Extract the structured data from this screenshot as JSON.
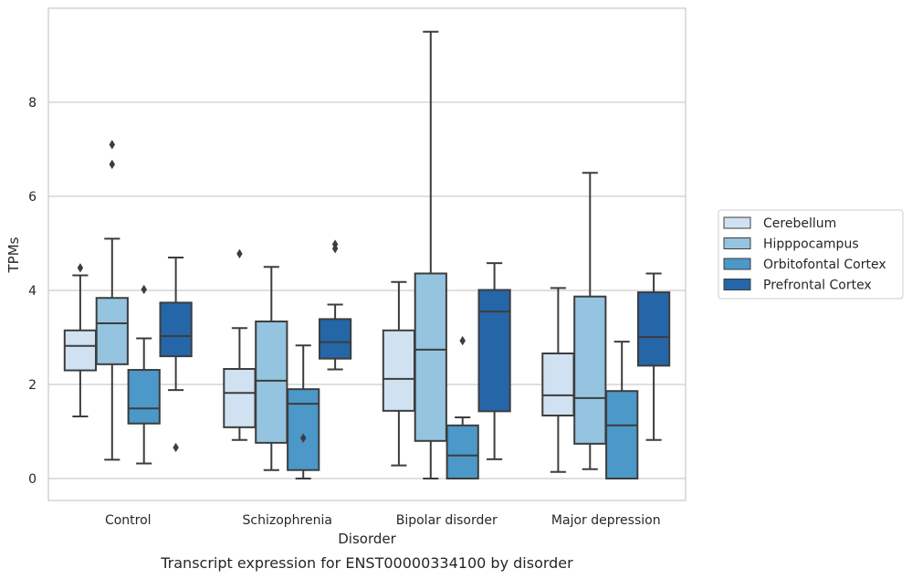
{
  "chart_data": {
    "type": "box",
    "title": "",
    "caption": "Transcript expression for ENST00000334100 by disorder",
    "xlabel": "Disorder",
    "ylabel": "TPMs",
    "ylim": [
      -0.45,
      10.0
    ],
    "yticks": [
      0,
      2,
      4,
      6,
      8
    ],
    "grid": "horizontal",
    "legend_position": "right",
    "categories": [
      "Control",
      "Schizophrenia",
      "Bipolar disorder",
      "Major depression"
    ],
    "series": [
      {
        "name": "Cerebellum",
        "color": "#d0e1f2",
        "boxes": [
          {
            "whislo": 1.32,
            "q1": 2.3,
            "med": 2.82,
            "q3": 3.15,
            "whishi": 4.32,
            "fliers": [
              4.48
            ]
          },
          {
            "whislo": 0.82,
            "q1": 1.09,
            "med": 1.82,
            "q3": 2.33,
            "whishi": 3.2,
            "fliers": [
              4.78
            ]
          },
          {
            "whislo": 0.28,
            "q1": 1.44,
            "med": 2.12,
            "q3": 3.15,
            "whishi": 4.18,
            "fliers": []
          },
          {
            "whislo": 0.14,
            "q1": 1.34,
            "med": 1.77,
            "q3": 2.66,
            "whishi": 4.05,
            "fliers": []
          }
        ]
      },
      {
        "name": "Hipppocampus",
        "color": "#94c4df",
        "boxes": [
          {
            "whislo": 0.4,
            "q1": 2.43,
            "med": 3.3,
            "q3": 3.84,
            "whishi": 5.1,
            "fliers": [
              7.1,
              6.68
            ]
          },
          {
            "whislo": 0.18,
            "q1": 0.76,
            "med": 2.08,
            "q3": 3.34,
            "whishi": 4.5,
            "fliers": []
          },
          {
            "whislo": 0.0,
            "q1": 0.8,
            "med": 2.74,
            "q3": 4.36,
            "whishi": 9.5,
            "fliers": []
          },
          {
            "whislo": 0.2,
            "q1": 0.74,
            "med": 1.71,
            "q3": 3.87,
            "whishi": 6.5,
            "fliers": []
          }
        ]
      },
      {
        "name": "Orbitofontal Cortex",
        "color": "#4b98c9",
        "boxes": [
          {
            "whislo": 0.32,
            "q1": 1.17,
            "med": 1.49,
            "q3": 2.31,
            "whishi": 2.98,
            "fliers": [
              4.02
            ]
          },
          {
            "whislo": 0.0,
            "q1": 0.18,
            "med": 1.59,
            "q3": 1.9,
            "whishi": 2.83,
            "fliers": [
              0.86
            ]
          },
          {
            "whislo": 0.0,
            "q1": 0.0,
            "med": 0.49,
            "q3": 1.13,
            "whishi": 1.3,
            "fliers": [
              2.93
            ]
          },
          {
            "whislo": 0.0,
            "q1": 0.0,
            "med": 1.13,
            "q3": 1.86,
            "whishi": 2.91,
            "fliers": []
          }
        ]
      },
      {
        "name": "Prefrontal Cortex",
        "color": "#2466a8",
        "boxes": [
          {
            "whislo": 1.88,
            "q1": 2.6,
            "med": 3.03,
            "q3": 3.74,
            "whishi": 4.7,
            "fliers": [
              0.66
            ]
          },
          {
            "whislo": 2.32,
            "q1": 2.55,
            "med": 2.9,
            "q3": 3.39,
            "whishi": 3.7,
            "fliers": [
              4.98,
              4.89
            ]
          },
          {
            "whislo": 0.41,
            "q1": 1.43,
            "med": 3.55,
            "q3": 4.01,
            "whishi": 4.58,
            "fliers": []
          },
          {
            "whislo": 0.82,
            "q1": 2.4,
            "med": 3.01,
            "q3": 3.96,
            "whishi": 4.36,
            "fliers": []
          }
        ]
      }
    ]
  }
}
